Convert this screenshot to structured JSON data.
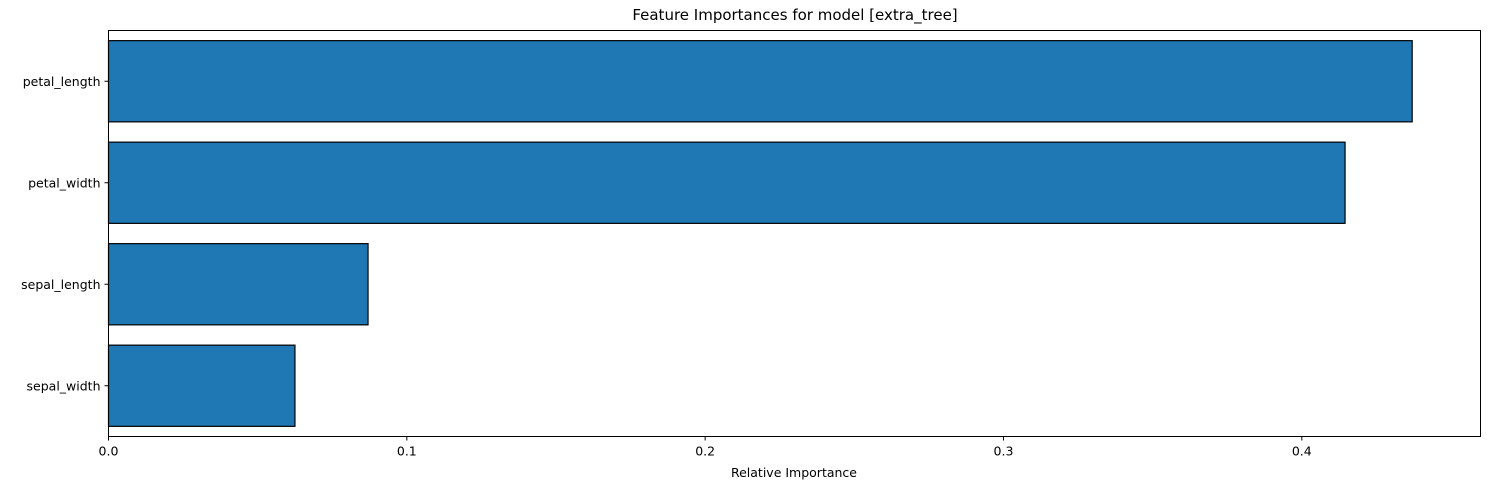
{
  "chart_data": {
    "type": "bar",
    "orientation": "horizontal",
    "title": "Feature Importances for model [extra_tree]",
    "xlabel": "Relative Importance",
    "ylabel": "",
    "categories": [
      "petal_length",
      "petal_width",
      "sepal_length",
      "sepal_width"
    ],
    "values": [
      0.437,
      0.4145,
      0.087,
      0.0625
    ],
    "xlim": [
      0,
      0.4599
    ],
    "xticks": [
      "0.0",
      "0.1",
      "0.2",
      "0.3",
      "0.4"
    ],
    "grid": false,
    "legend": "none",
    "bar_color": "#1f77b4",
    "edge_color": "#000000"
  }
}
